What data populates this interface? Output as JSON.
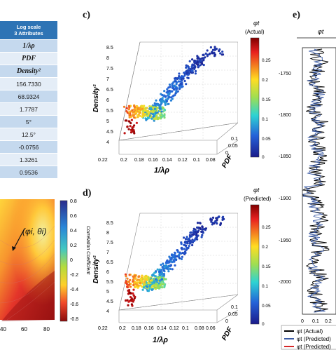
{
  "table": {
    "header_line1": "Log scale",
    "header_line2": "3 Attributes",
    "attributes": [
      "1/λρ",
      "PDF",
      "Density²"
    ],
    "values": [
      "156.7330",
      "68.9324",
      "1.7787",
      "5°",
      "12.5°",
      "-0.0756",
      "1.3261",
      "0.9536"
    ]
  },
  "panel_labels": {
    "c": "c)",
    "d": "d)",
    "e": "e)"
  },
  "heatmap": {
    "annotation": "(φi, θi)",
    "colorbar_title": "Correlation Coefficient",
    "colorbar_ticks": [
      "0.8",
      "0.6",
      "0.4",
      "0.2",
      "0",
      "-0.2",
      "-0.4",
      "-0.6",
      "-0.8"
    ],
    "x_ticks": [
      "40",
      "60",
      "80"
    ]
  },
  "chart_data": [
    {
      "type": "scatter",
      "panel": "c",
      "xlabel": "1/λρ",
      "ylabel": "PDF",
      "zlabel": "Density²",
      "x_ticks": [
        "0.22",
        "0.2",
        "0.18",
        "0.16",
        "0.14",
        "0.12",
        "0.1",
        "0.08"
      ],
      "y_ticks": [
        "0",
        "0.05",
        "0.1"
      ],
      "z_ticks": [
        "4",
        "4.5",
        "5",
        "5.5",
        "6",
        "6.5",
        "7",
        "7.5",
        "8",
        "8.5"
      ],
      "colorbar_title": "φt",
      "colorbar_subtitle": "(Actual)",
      "colorbar_ticks": [
        "0.25",
        "0.2",
        "0.15",
        "0.1",
        "0.05",
        "0"
      ]
    },
    {
      "type": "scatter",
      "panel": "d",
      "xlabel": "1/λρ",
      "ylabel": "PDF",
      "zlabel": "Density²",
      "x_ticks": [
        "0.22",
        "0.2",
        "0.18",
        "0.16",
        "0.14",
        "0.12",
        "0.1",
        "0.08",
        "0.06"
      ],
      "y_ticks": [
        "0",
        "0.05",
        "0.1"
      ],
      "z_ticks": [
        "4",
        "4.5",
        "5",
        "5.5",
        "6",
        "6.5",
        "7",
        "7.5",
        "8",
        "8.5"
      ],
      "colorbar_title": "φt",
      "colorbar_subtitle": "(Predicted)",
      "colorbar_ticks": [
        "0.25",
        "0.2",
        "0.15",
        "0.1",
        "0.05",
        "0"
      ]
    },
    {
      "type": "line",
      "panel": "e",
      "title": "φt",
      "y_ticks": [
        "-1750",
        "-1800",
        "-1850",
        "-1900",
        "-1950",
        "-2000"
      ],
      "x_ticks": [
        "0",
        "0.1",
        "0.2"
      ],
      "legend": [
        "φt (Actual)",
        "φt (Predicted)",
        "φt (Predicted)"
      ],
      "legend_colors": [
        "#000000",
        "#3b5ba5",
        "#d62728"
      ]
    }
  ]
}
